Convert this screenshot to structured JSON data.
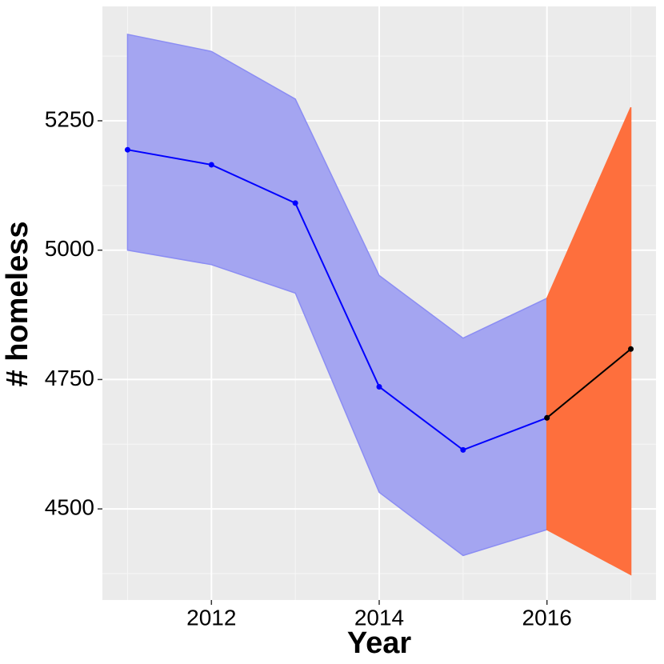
{
  "chart_data": {
    "type": "line",
    "xlabel": "Year",
    "ylabel": "# homeless",
    "x": [
      2011,
      2012,
      2013,
      2014,
      2015,
      2016,
      2017
    ],
    "series": [
      {
        "color": "#0000ff",
        "values": [
          5194,
          5165,
          5091,
          4736,
          4614,
          4676,
          null
        ]
      },
      {
        "color": "#000000",
        "values": [
          null,
          null,
          null,
          null,
          null,
          4676,
          4809
        ]
      }
    ],
    "bands": [
      {
        "color": "#a4a5f1",
        "edge": "#8b8df3",
        "lower": [
          5000,
          4972,
          4917,
          4532,
          4410,
          4460,
          null
        ],
        "upper": [
          5417,
          5384,
          5292,
          4951,
          4830,
          4907,
          null
        ]
      },
      {
        "color": "#fe6f3d",
        "edge": "#fe6f3d",
        "lower": [
          null,
          null,
          null,
          null,
          null,
          4460,
          4373
        ],
        "upper": [
          null,
          null,
          null,
          null,
          null,
          4907,
          5276
        ]
      }
    ],
    "xlim": [
      2010.7,
      2017.3
    ],
    "xticks": [
      2012,
      2014,
      2016
    ],
    "ylim": [
      4324,
      5471
    ],
    "yticks": [
      4500,
      4750,
      5000,
      5250
    ],
    "grid": true
  }
}
